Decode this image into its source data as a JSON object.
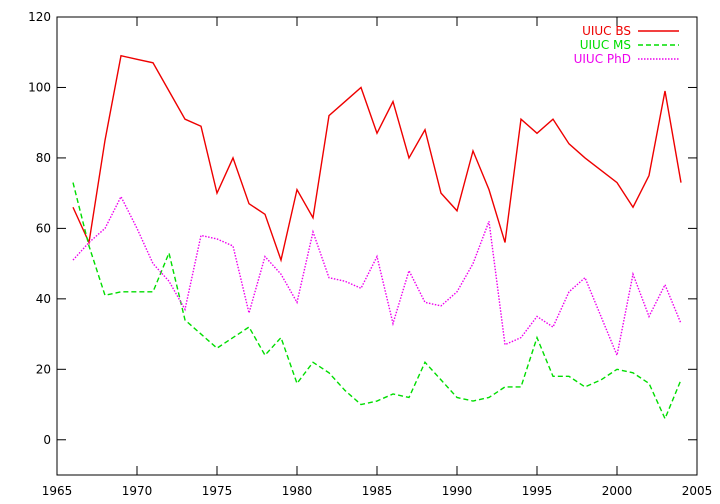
{
  "chart_data": {
    "type": "line",
    "title": "",
    "xlabel": "",
    "ylabel": "",
    "xlim": [
      1965,
      2005
    ],
    "ylim": [
      -10,
      120
    ],
    "xticks": [
      1965,
      1970,
      1975,
      1980,
      1985,
      1990,
      1995,
      2000,
      2005
    ],
    "yticks": [
      0,
      20,
      40,
      60,
      80,
      100,
      120
    ],
    "grid": false,
    "legend_position": "top-right",
    "series": [
      {
        "name": "UIUC BS",
        "color": "#ee0000",
        "dash": "solid",
        "points": [
          [
            1966,
            66
          ],
          [
            1967,
            56
          ],
          [
            1968,
            85
          ],
          [
            1969,
            109
          ],
          [
            1970,
            108
          ],
          [
            1971,
            107
          ],
          [
            1972,
            99
          ],
          [
            1973,
            91
          ],
          [
            1974,
            89
          ],
          [
            1975,
            70
          ],
          [
            1976,
            80
          ],
          [
            1977,
            67
          ],
          [
            1978,
            64
          ],
          [
            1979,
            51
          ],
          [
            1980,
            71
          ],
          [
            1981,
            63
          ],
          [
            1982,
            92
          ],
          [
            1983,
            96
          ],
          [
            1984,
            100
          ],
          [
            1985,
            87
          ],
          [
            1986,
            96
          ],
          [
            1987,
            80
          ],
          [
            1988,
            88
          ],
          [
            1989,
            70
          ],
          [
            1990,
            65
          ],
          [
            1991,
            82
          ],
          [
            1992,
            71
          ],
          [
            1993,
            56
          ],
          [
            1994,
            91
          ],
          [
            1995,
            87
          ],
          [
            1996,
            91
          ],
          [
            1997,
            84
          ],
          [
            1998,
            80
          ],
          [
            2000,
            73
          ],
          [
            2001,
            66
          ],
          [
            2002,
            75
          ],
          [
            2003,
            99
          ],
          [
            2004,
            73
          ]
        ]
      },
      {
        "name": "UIUC MS",
        "color": "#00dd00",
        "dash": "dashed",
        "points": [
          [
            1966,
            73
          ],
          [
            1967,
            55
          ],
          [
            1968,
            41
          ],
          [
            1969,
            42
          ],
          [
            1970,
            42
          ],
          [
            1971,
            42
          ],
          [
            1972,
            53
          ],
          [
            1973,
            34
          ],
          [
            1974,
            30
          ],
          [
            1975,
            26
          ],
          [
            1976,
            29
          ],
          [
            1977,
            32
          ],
          [
            1978,
            24
          ],
          [
            1979,
            29
          ],
          [
            1980,
            16
          ],
          [
            1981,
            22
          ],
          [
            1982,
            19
          ],
          [
            1983,
            14
          ],
          [
            1984,
            10
          ],
          [
            1985,
            11
          ],
          [
            1986,
            13
          ],
          [
            1987,
            12
          ],
          [
            1988,
            22
          ],
          [
            1989,
            17
          ],
          [
            1990,
            12
          ],
          [
            1991,
            11
          ],
          [
            1992,
            12
          ],
          [
            1993,
            15
          ],
          [
            1994,
            15
          ],
          [
            1995,
            29
          ],
          [
            1996,
            18
          ],
          [
            1997,
            18
          ],
          [
            1998,
            15
          ],
          [
            1999,
            17
          ],
          [
            2000,
            20
          ],
          [
            2001,
            19
          ],
          [
            2002,
            16
          ],
          [
            2003,
            6
          ],
          [
            2004,
            17
          ]
        ]
      },
      {
        "name": "UIUC PhD",
        "color": "#ee00ee",
        "dash": "dotted",
        "points": [
          [
            1966,
            51
          ],
          [
            1967,
            56
          ],
          [
            1968,
            60
          ],
          [
            1969,
            69
          ],
          [
            1970,
            60
          ],
          [
            1971,
            50
          ],
          [
            1972,
            45
          ],
          [
            1973,
            37
          ],
          [
            1974,
            58
          ],
          [
            1975,
            57
          ],
          [
            1976,
            55
          ],
          [
            1977,
            36
          ],
          [
            1978,
            52
          ],
          [
            1979,
            47
          ],
          [
            1980,
            39
          ],
          [
            1981,
            59
          ],
          [
            1982,
            46
          ],
          [
            1983,
            45
          ],
          [
            1984,
            43
          ],
          [
            1985,
            52
          ],
          [
            1986,
            33
          ],
          [
            1987,
            48
          ],
          [
            1988,
            39
          ],
          [
            1989,
            38
          ],
          [
            1990,
            42
          ],
          [
            1991,
            50
          ],
          [
            1992,
            62
          ],
          [
            1993,
            27
          ],
          [
            1994,
            29
          ],
          [
            1995,
            35
          ],
          [
            1996,
            32
          ],
          [
            1997,
            42
          ],
          [
            1998,
            46
          ],
          [
            1999,
            35
          ],
          [
            2000,
            24
          ],
          [
            2001,
            47
          ],
          [
            2002,
            35
          ],
          [
            2003,
            44
          ],
          [
            2004,
            33
          ]
        ]
      }
    ]
  }
}
